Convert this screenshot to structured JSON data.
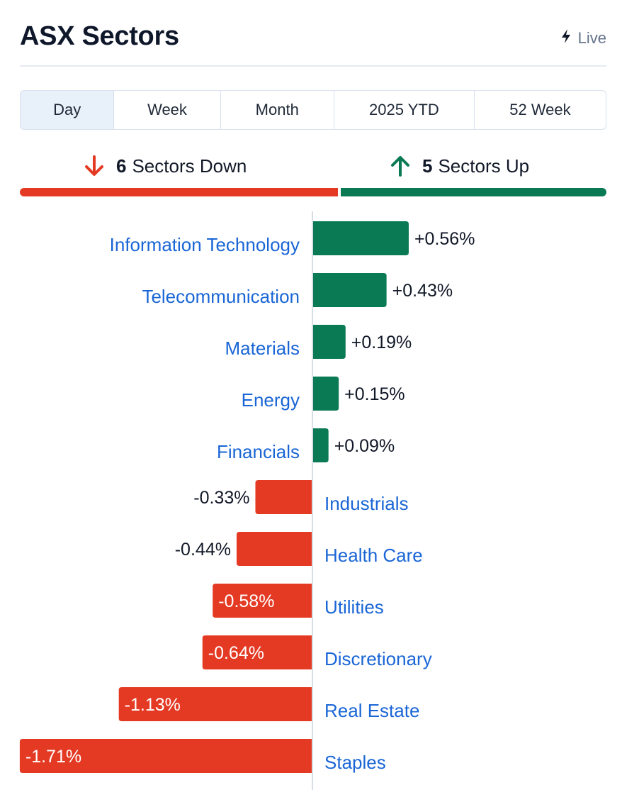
{
  "header": {
    "title": "ASX Sectors",
    "live_label": "Live",
    "live_icon": "lightning-bolt-icon"
  },
  "tabs": [
    {
      "label": "Day",
      "active": true
    },
    {
      "label": "Week",
      "active": false
    },
    {
      "label": "Month",
      "active": false
    },
    {
      "label": "2025 YTD",
      "active": false
    },
    {
      "label": "52 Week",
      "active": false
    }
  ],
  "summary": {
    "down": {
      "count": "6",
      "label": "Sectors Down",
      "icon": "arrow-down-icon",
      "color": "#e43a24"
    },
    "up": {
      "count": "5",
      "label": "Sectors Up",
      "icon": "arrow-up-icon",
      "color": "#0a7a55"
    }
  },
  "colors": {
    "positive": "#0a7a55",
    "negative": "#e43a24",
    "sector_label": "#1a66d6",
    "axis_line": "#d9dee6"
  },
  "chart_data": {
    "type": "bar",
    "orientation": "horizontal",
    "categories": [
      "Information Technology",
      "Telecommunication",
      "Materials",
      "Energy",
      "Financials",
      "Industrials",
      "Health Care",
      "Utilities",
      "Discretionary",
      "Real Estate",
      "Staples"
    ],
    "values": [
      0.56,
      0.43,
      0.19,
      0.15,
      0.09,
      -0.33,
      -0.44,
      -0.58,
      -0.64,
      -1.13,
      -1.71
    ],
    "value_labels": [
      "+0.56%",
      "+0.43%",
      "+0.19%",
      "+0.15%",
      "+0.09%",
      "-0.33%",
      "-0.44%",
      "-0.58%",
      "-0.64%",
      "-1.13%",
      "-1.71%"
    ],
    "unit": "%"
  }
}
